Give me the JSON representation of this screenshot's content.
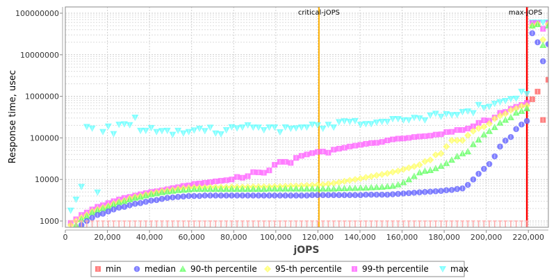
{
  "chart_data": {
    "type": "scatter",
    "title": "",
    "xlabel": "jOPS",
    "ylabel": "Response time, usec",
    "xlim": [
      0,
      229500
    ],
    "ylim": [
      710,
      140000000
    ],
    "yscale": "log",
    "grid": true,
    "legend_position": "bottom",
    "x_ticks": [
      "0",
      "20,000",
      "40,000",
      "60,000",
      "80,000",
      "100,000",
      "120,000",
      "140,000",
      "160,000",
      "180,000",
      "200,000",
      "220,000"
    ],
    "x_tick_values": [
      0,
      20000,
      40000,
      60000,
      80000,
      100000,
      120000,
      140000,
      160000,
      180000,
      200000,
      220000
    ],
    "y_ticks": [
      "1000",
      "10000",
      "100000",
      "1000000",
      "10000000",
      "100000000"
    ],
    "y_tick_values": [
      1000,
      10000,
      100000,
      1000000,
      10000000,
      100000000
    ],
    "annotations": [
      {
        "label": "critical-jOPS",
        "x": 120500,
        "color": "#ffb000"
      },
      {
        "label": "max-jOPS",
        "x": 219300,
        "color": "#ff0000"
      }
    ],
    "x": [
      2550,
      5100,
      7650,
      10200,
      12750,
      15300,
      17850,
      20400,
      22950,
      25500,
      28050,
      30600,
      33150,
      35700,
      38250,
      40800,
      43350,
      45900,
      48450,
      51000,
      53550,
      56100,
      58650,
      61200,
      63750,
      66300,
      68850,
      71400,
      73950,
      76500,
      79050,
      81600,
      84150,
      86700,
      89250,
      91800,
      94350,
      96900,
      99450,
      102000,
      104550,
      107100,
      109650,
      112200,
      114750,
      117300,
      119850,
      122400,
      124950,
      127500,
      130050,
      132600,
      135150,
      137700,
      140250,
      142800,
      145350,
      147900,
      150450,
      153000,
      155550,
      158100,
      160650,
      163200,
      165750,
      168300,
      170850,
      173400,
      175950,
      178500,
      181050,
      183600,
      186150,
      188700,
      191250,
      193800,
      196350,
      198900,
      201450,
      204000,
      206550,
      209100,
      211650,
      214200,
      216750,
      219300,
      221850,
      224400,
      226950,
      229500
    ],
    "series": [
      {
        "name": "min",
        "color": "#ff5555",
        "marker": "square",
        "values": [
          null,
          null,
          null,
          null,
          null,
          null,
          null,
          null,
          null,
          null,
          null,
          null,
          null,
          null,
          null,
          null,
          null,
          null,
          null,
          null,
          null,
          null,
          null,
          null,
          null,
          null,
          null,
          null,
          null,
          null,
          null,
          null,
          null,
          null,
          null,
          null,
          null,
          null,
          null,
          null,
          null,
          null,
          null,
          null,
          null,
          null,
          null,
          null,
          null,
          null,
          null,
          null,
          null,
          null,
          null,
          null,
          null,
          null,
          null,
          null,
          null,
          null,
          null,
          null,
          null,
          null,
          null,
          null,
          null,
          null,
          null,
          null,
          null,
          null,
          null,
          null,
          null,
          null,
          null,
          null,
          null,
          null,
          null,
          null,
          null,
          null,
          850000,
          1300000,
          270000,
          2500000
        ]
      },
      {
        "name": "median",
        "color": "#5555ff",
        "marker": "circle",
        "values": [
          null,
          null,
          800,
          1000,
          1200,
          1400,
          1500,
          1700,
          1900,
          2100,
          2200,
          2400,
          2600,
          2700,
          2900,
          3100,
          3200,
          3400,
          3600,
          3700,
          3800,
          3900,
          4000,
          4000,
          4000,
          4100,
          4100,
          4100,
          4100,
          4100,
          4100,
          4100,
          4100,
          4100,
          4100,
          4100,
          4100,
          4100,
          4100,
          4100,
          4100,
          4100,
          4100,
          4100,
          4100,
          4200,
          4200,
          4200,
          4200,
          4200,
          4200,
          4200,
          4200,
          4200,
          4200,
          4300,
          4300,
          4300,
          4300,
          4300,
          4400,
          4500,
          4600,
          4700,
          4800,
          4900,
          5000,
          5100,
          5200,
          5300,
          5500,
          5600,
          5900,
          6100,
          7400,
          10000,
          13700,
          18000,
          23500,
          36000,
          62000,
          86000,
          105000,
          163000,
          210000,
          255000,
          33000000,
          20000000,
          7000000,
          18000000
        ]
      },
      {
        "name": "90-th percentile",
        "color": "#55ff55",
        "marker": "triangle-up",
        "values": [
          null,
          800,
          1100,
          1300,
          1600,
          1800,
          2000,
          2200,
          2500,
          2800,
          3000,
          3300,
          3600,
          3800,
          4100,
          4400,
          4600,
          4900,
          5100,
          5300,
          5500,
          5600,
          5700,
          5900,
          5900,
          5900,
          5900,
          5900,
          5900,
          5900,
          5900,
          5900,
          5900,
          5900,
          5900,
          5900,
          5900,
          6000,
          6000,
          6000,
          6000,
          6000,
          6000,
          6000,
          6000,
          6000,
          6000,
          6000,
          6000,
          6000,
          6100,
          6100,
          6200,
          6200,
          6300,
          6300,
          6400,
          6500,
          6600,
          6800,
          7000,
          7500,
          8500,
          10000,
          12000,
          14700,
          16000,
          16600,
          18500,
          21000,
          24500,
          29500,
          36000,
          42000,
          47000,
          70000,
          90000,
          120000,
          145000,
          180000,
          230000,
          270000,
          310000,
          400000,
          440000,
          510000,
          50000000,
          54000000,
          17000000,
          50000000
        ]
      },
      {
        "name": "95-th percentile",
        "color": "#ffff55",
        "marker": "diamond",
        "values": [
          800,
          1000,
          1200,
          1400,
          1700,
          1900,
          2100,
          2300,
          2600,
          2900,
          3100,
          3500,
          3800,
          4000,
          4300,
          4600,
          4900,
          5200,
          5400,
          5600,
          5900,
          6100,
          6300,
          6400,
          6400,
          6400,
          6500,
          6500,
          6500,
          6500,
          6600,
          6600,
          6600,
          6600,
          6700,
          6700,
          6700,
          6700,
          6800,
          6800,
          6900,
          7000,
          7000,
          7100,
          7200,
          7300,
          7400,
          7500,
          7800,
          8100,
          8500,
          9000,
          9500,
          10000,
          10500,
          11200,
          11800,
          12500,
          13200,
          14000,
          15000,
          16000,
          17500,
          19000,
          20500,
          22500,
          27000,
          29500,
          39000,
          42000,
          62000,
          87000,
          87000,
          87000,
          115000,
          145000,
          170000,
          185000,
          220000,
          290000,
          340000,
          380000,
          460000,
          510000,
          580000,
          600000,
          50000000,
          55000000,
          23000000,
          55000000
        ]
      },
      {
        "name": "99-th percentile",
        "color": "#ff55ff",
        "marker": "square",
        "values": [
          900,
          1100,
          1400,
          1600,
          1900,
          2200,
          2400,
          2700,
          3000,
          3300,
          3600,
          3800,
          4100,
          4400,
          4700,
          5000,
          5200,
          5500,
          5800,
          6200,
          6500,
          7000,
          7200,
          7800,
          8000,
          8300,
          8600,
          9000,
          9300,
          9600,
          10000,
          11500,
          11000,
          12000,
          15000,
          14800,
          14500,
          16500,
          22500,
          26500,
          26500,
          25000,
          33000,
          37000,
          40000,
          43000,
          46000,
          47000,
          44000,
          52000,
          55000,
          58000,
          62000,
          65000,
          68000,
          72000,
          75000,
          76000,
          80000,
          87000,
          92000,
          96000,
          97000,
          100000,
          105000,
          108000,
          110000,
          113000,
          120000,
          122000,
          138000,
          140000,
          155000,
          155000,
          168000,
          190000,
          230000,
          265000,
          260000,
          310000,
          400000,
          420000,
          500000,
          560000,
          620000,
          700000,
          58000000,
          58000000,
          42000000,
          58000000
        ]
      },
      {
        "name": "max",
        "color": "#55ffff",
        "marker": "triangle-down",
        "values": [
          1800,
          3300,
          6700,
          185000,
          170000,
          4900,
          140000,
          190000,
          125000,
          210000,
          215000,
          205000,
          310000,
          150000,
          150000,
          175000,
          140000,
          148000,
          150000,
          120000,
          150000,
          130000,
          140000,
          153000,
          168000,
          148000,
          178000,
          129000,
          124000,
          155000,
          183000,
          172000,
          180000,
          203000,
          179000,
          179000,
          155000,
          180000,
          180000,
          138000,
          181000,
          168000,
          172000,
          180000,
          180000,
          211000,
          203000,
          168000,
          209000,
          180000,
          243000,
          253000,
          246000,
          257000,
          209000,
          217000,
          217000,
          237000,
          246000,
          246000,
          287000,
          287000,
          269000,
          269000,
          307000,
          298000,
          269000,
          352000,
          386000,
          325000,
          376000,
          357000,
          360000,
          422000,
          439000,
          399000,
          627000,
          532000,
          567000,
          670000,
          733000,
          781000,
          867000,
          887000,
          1303000,
          1150000,
          60000000,
          60000000,
          60000000,
          60000000
        ]
      }
    ]
  }
}
